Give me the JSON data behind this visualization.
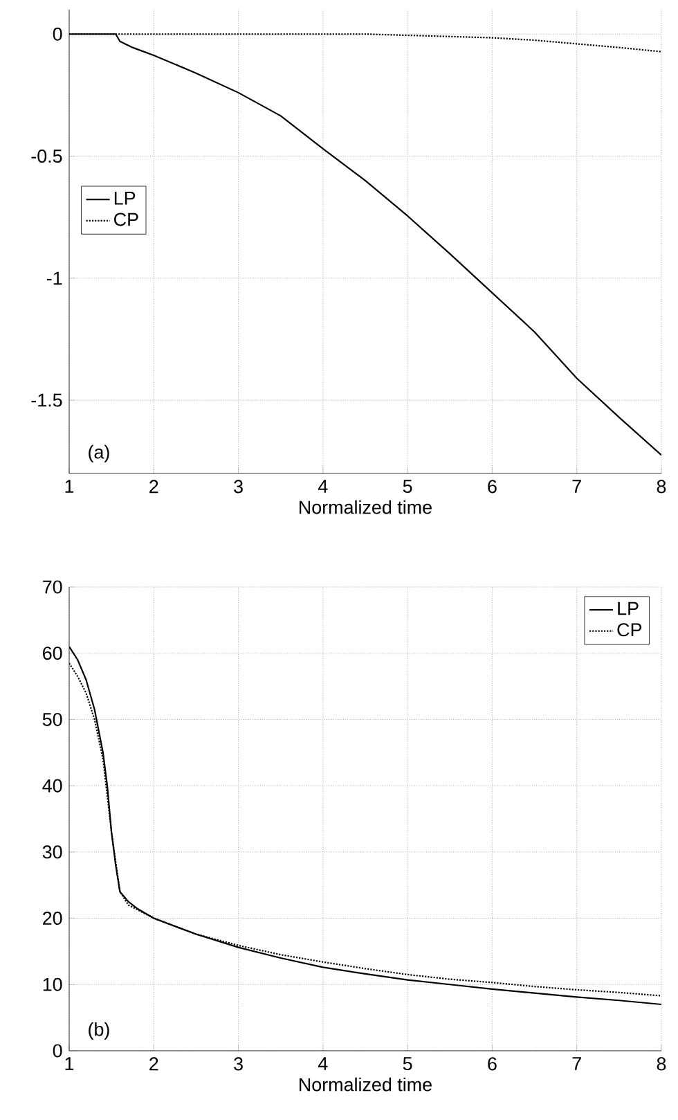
{
  "chart_data": [
    {
      "type": "line",
      "xlabel": "Normalized time",
      "annotations": [
        "(a)"
      ],
      "xlim": [
        1,
        8
      ],
      "ylim": [
        -1.8,
        0.1
      ],
      "xticks": [
        1,
        2,
        3,
        4,
        5,
        6,
        7,
        8
      ],
      "yticks": [
        -1.5,
        -1,
        -0.5,
        0
      ],
      "grid": true,
      "legend": "center left",
      "series": [
        {
          "name": "LP",
          "color": "#000000",
          "line_style": "solid",
          "x": [
            1,
            1.55,
            1.6,
            1.75,
            2,
            2.5,
            3,
            3.5,
            4,
            4.5,
            5,
            5.5,
            6,
            6.5,
            7,
            7.5,
            8
          ],
          "values": [
            0,
            0,
            -0.03,
            -0.055,
            -0.087,
            -0.16,
            -0.24,
            -0.335,
            -0.47,
            -0.6,
            -0.745,
            -0.9,
            -1.06,
            -1.22,
            -1.41,
            -1.57,
            -1.725
          ]
        },
        {
          "name": "CP",
          "color": "#000000",
          "line_style": "dotted",
          "x": [
            1,
            2,
            3,
            4,
            4.5,
            5,
            5.5,
            6,
            6.5,
            7,
            7.5,
            8
          ],
          "values": [
            0,
            0,
            0,
            0,
            0,
            -0.005,
            -0.01,
            -0.015,
            -0.025,
            -0.04,
            -0.055,
            -0.072
          ]
        }
      ]
    },
    {
      "type": "line",
      "xlabel": "Normalized time",
      "annotations": [
        "(b)"
      ],
      "xlim": [
        1,
        8
      ],
      "ylim": [
        0,
        70
      ],
      "xticks": [
        1,
        2,
        3,
        4,
        5,
        6,
        7,
        8
      ],
      "yticks": [
        0,
        10,
        20,
        30,
        40,
        50,
        60,
        70
      ],
      "grid": true,
      "legend": "top right",
      "series": [
        {
          "name": "LP",
          "color": "#000000",
          "line_style": "solid",
          "x": [
            1,
            1.1,
            1.2,
            1.3,
            1.4,
            1.45,
            1.5,
            1.55,
            1.6,
            1.7,
            1.8,
            2,
            2.5,
            3,
            3.5,
            4,
            4.5,
            5,
            5.5,
            6,
            6.5,
            7,
            7.5,
            8
          ],
          "values": [
            61,
            59,
            56,
            51.5,
            45,
            40,
            33,
            28,
            24,
            22.5,
            21.5,
            20,
            17.6,
            15.6,
            14,
            12.6,
            11.6,
            10.7,
            10,
            9.3,
            8.7,
            8.1,
            7.6,
            7
          ]
        },
        {
          "name": "CP",
          "color": "#000000",
          "line_style": "dotted",
          "x": [
            1,
            1.1,
            1.2,
            1.3,
            1.4,
            1.5,
            1.6,
            1.7,
            2,
            2.5,
            3,
            3.5,
            4,
            4.5,
            5,
            5.5,
            6,
            6.5,
            7,
            7.5,
            8
          ],
          "values": [
            58.5,
            56.5,
            54,
            50,
            44,
            33,
            24,
            22,
            20,
            17.6,
            15.9,
            14.5,
            13.4,
            12.4,
            11.5,
            10.8,
            10.3,
            9.7,
            9.2,
            8.8,
            8.3
          ]
        }
      ]
    }
  ]
}
